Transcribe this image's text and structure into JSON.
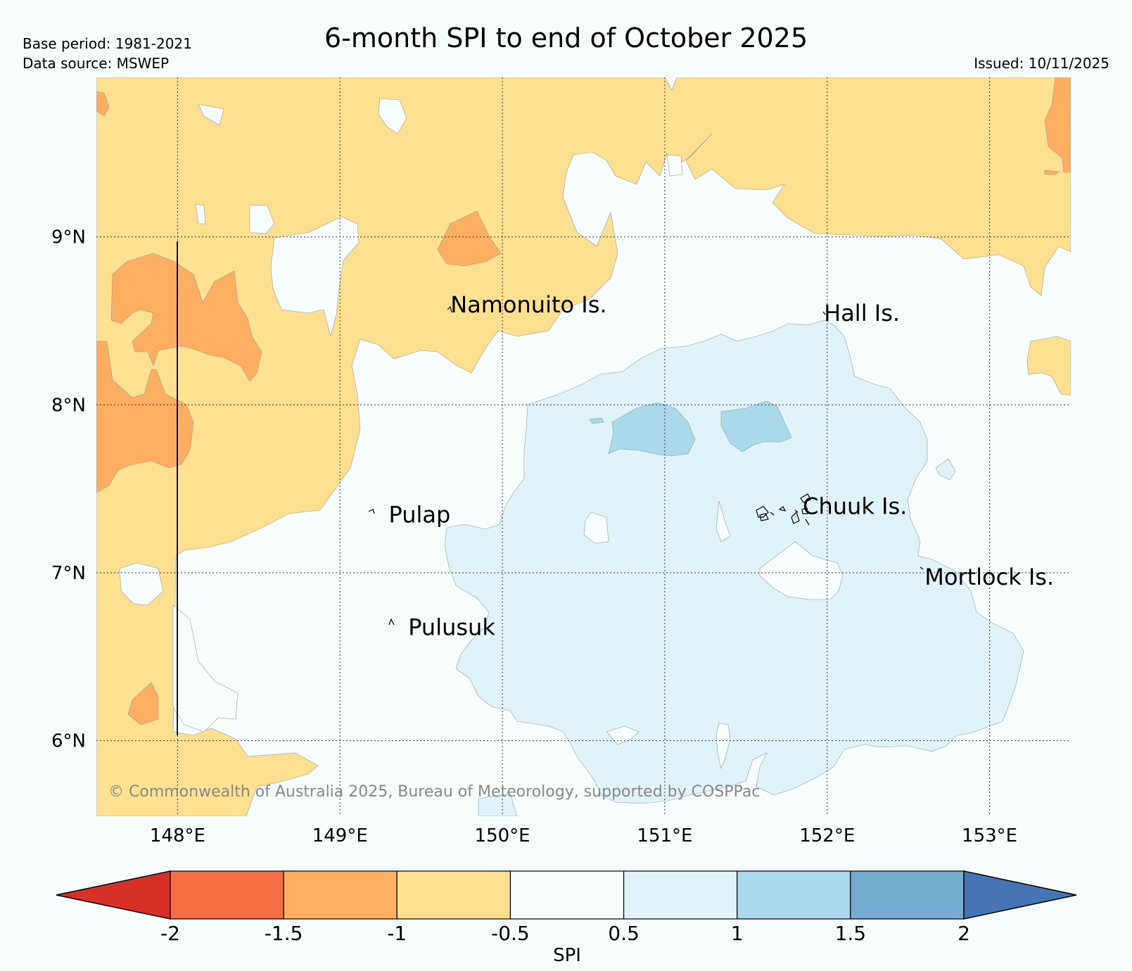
{
  "header": {
    "title": "6-month SPI to end of October 2025",
    "base_period": "Base period: 1981-2021",
    "data_source": "Data source: MSWEP",
    "issued": "Issued: 10/11/2025"
  },
  "map": {
    "lon_range": [
      147.5,
      153.5
    ],
    "lat_range": [
      5.55,
      9.95
    ],
    "lon_ticks": [
      {
        "value": 148,
        "label": "148°E"
      },
      {
        "value": 149,
        "label": "149°E"
      },
      {
        "value": 150,
        "label": "150°E"
      },
      {
        "value": 151,
        "label": "151°E"
      },
      {
        "value": 152,
        "label": "152°E"
      },
      {
        "value": 153,
        "label": "153°E"
      }
    ],
    "lat_ticks": [
      {
        "value": 6,
        "label": "6°N"
      },
      {
        "value": 7,
        "label": "7°N"
      },
      {
        "value": 8,
        "label": "8°N"
      },
      {
        "value": 9,
        "label": "9°N"
      }
    ],
    "places": [
      {
        "name": "Namonuito Is.",
        "lon": 149.68,
        "lat": 8.6
      },
      {
        "name": "Hall Is.",
        "lon": 151.98,
        "lat": 8.55
      },
      {
        "name": "Pulap",
        "lon": 149.3,
        "lat": 7.35
      },
      {
        "name": "Chuuk Is.",
        "lon": 151.85,
        "lat": 7.4
      },
      {
        "name": "Mortlock Is.",
        "lon": 152.6,
        "lat": 6.98
      },
      {
        "name": "Pulusuk",
        "lon": 149.42,
        "lat": 6.68
      }
    ],
    "copyright": "© Commonwealth of Australia 2025, Bureau of Meteorology, supported by COSPPac"
  },
  "colorbar": {
    "label": "SPI",
    "ticks": [
      "-2",
      "-1.5",
      "-1",
      "-0.5",
      "0.5",
      "1",
      "1.5",
      "2"
    ],
    "colors": [
      "#d73027",
      "#f46d43",
      "#fdae61",
      "#fee090",
      "#f7fcfd",
      "#e0f3f8",
      "#abd9e9",
      "#74add1",
      "#4575b4"
    ]
  }
}
